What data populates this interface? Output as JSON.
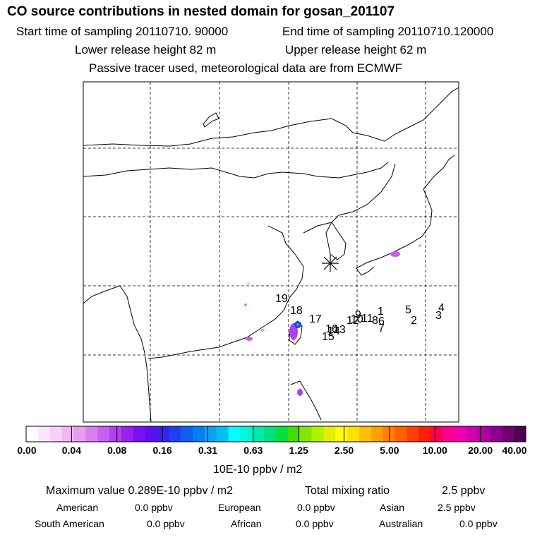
{
  "header": {
    "title": "CO  source contributions in nested domain for gosan_201107",
    "start_time": "Start time of sampling 20110710. 90000",
    "end_time": "End time of sampling 20110710.120000",
    "lower_height": "Lower release height   82 m",
    "upper_height": "Upper release height   62 m",
    "tracer_note": "Passive tracer used, meteorological data are from ECMWF"
  },
  "colors": {
    "scale": [
      "#ffffff",
      "#fbe7fb",
      "#f6d0f8",
      "#efb8f4",
      "#e69ef0",
      "#d97ff0",
      "#c660f0",
      "#b040f0",
      "#9a20f0",
      "#7a10f0",
      "#5a10f0",
      "#3a20f0",
      "#2040f0",
      "#1060f0",
      "#0080f0",
      "#10a0f0",
      "#00c0f0",
      "#00ffff",
      "#00f5dc",
      "#00e8b0",
      "#00e080",
      "#00e040",
      "#40e000",
      "#80e800",
      "#b0f000",
      "#e0f000",
      "#ffff00",
      "#ffe000",
      "#ffc000",
      "#ffa000",
      "#ff8000",
      "#ff6000",
      "#ff4000",
      "#ff2000",
      "#ff0050",
      "#ff0090",
      "#f000b0",
      "#d000b0",
      "#b000a0",
      "#900090",
      "#700070",
      "#500050"
    ],
    "marker": "#000000"
  },
  "colorbar": {
    "tick_labels": [
      "0.00",
      "0.04",
      "0.08",
      "0.16",
      "0.31",
      "0.63",
      "1.25",
      "2.50",
      "5.00",
      "10.00",
      "20.00",
      "40.00"
    ],
    "unit": "10E-10 ppbv / m2"
  },
  "stats": {
    "max_value": "Maximum value  0.289E-10 ppbv / m2",
    "total_mixing": "Total mixing ratio",
    "total_value": "2.5 ppbv",
    "american_label": "American",
    "american_value": "0.0 ppbv",
    "european_label": "European",
    "european_value": "0.0 ppbv",
    "asian_label": "Asian",
    "asian_value": "2.5 ppbv",
    "south_american_label": "South American",
    "south_american_value": "0.0 ppbv",
    "african_label": "African",
    "african_value": "0.0 ppbv",
    "australian_label": "Australian",
    "australian_value": "0.0 ppbv"
  },
  "chart_data": {
    "type": "heatmap",
    "title": "CO  source contributions in nested domain for gosan_201107",
    "colorbar_levels": [
      0.0,
      0.04,
      0.08,
      0.16,
      0.31,
      0.63,
      1.25,
      2.5,
      5.0,
      10.0,
      20.0,
      40.0
    ],
    "colorbar_unit": "10E-10 ppbv / m2",
    "receptor": "gosan",
    "grid": true,
    "trajectory_labels": [
      "1",
      "2",
      "3",
      "4",
      "5",
      "6",
      "7",
      "8",
      "9",
      "10",
      "11",
      "12",
      "13",
      "14",
      "15",
      "16",
      "17",
      "18",
      "19"
    ],
    "max_value": "0.289E-10 ppbv / m2",
    "total_mixing_ratio_ppbv": 2.5
  }
}
